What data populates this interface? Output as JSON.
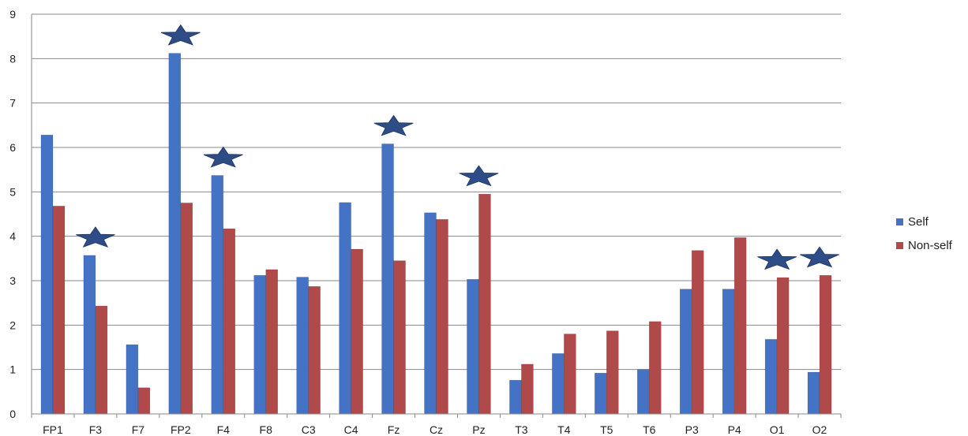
{
  "chart_data": {
    "type": "bar",
    "categories": [
      "FP1",
      "F3",
      "F7",
      "FP2",
      "F4",
      "F8",
      "C3",
      "C4",
      "Fz",
      "Cz",
      "Pz",
      "T3",
      "T4",
      "T5",
      "T6",
      "P3",
      "P4",
      "O1",
      "O2"
    ],
    "series": [
      {
        "name": "Self",
        "color": "#4472C4",
        "values": [
          6.28,
          3.57,
          1.56,
          8.12,
          5.37,
          3.12,
          3.08,
          4.76,
          6.08,
          4.53,
          3.03,
          0.76,
          1.36,
          0.92,
          1.0,
          2.81,
          2.81,
          1.68,
          0.94
        ]
      },
      {
        "name": "Non-self",
        "color": "#B04A4A",
        "values": [
          4.68,
          2.43,
          0.59,
          4.75,
          4.17,
          3.25,
          2.87,
          3.71,
          3.45,
          4.38,
          4.95,
          1.12,
          1.8,
          1.87,
          2.08,
          3.68,
          3.97,
          3.07,
          3.12
        ]
      }
    ],
    "significant": [
      "F3",
      "FP2",
      "F4",
      "Fz",
      "Pz",
      "O1",
      "O2"
    ],
    "star_color": "#2E4D86",
    "ylim": [
      0,
      9
    ],
    "yticks": [
      0,
      1,
      2,
      3,
      4,
      5,
      6,
      7,
      8,
      9
    ],
    "grid": true,
    "legend_position": "right",
    "title": "",
    "xlabel": "",
    "ylabel": ""
  }
}
